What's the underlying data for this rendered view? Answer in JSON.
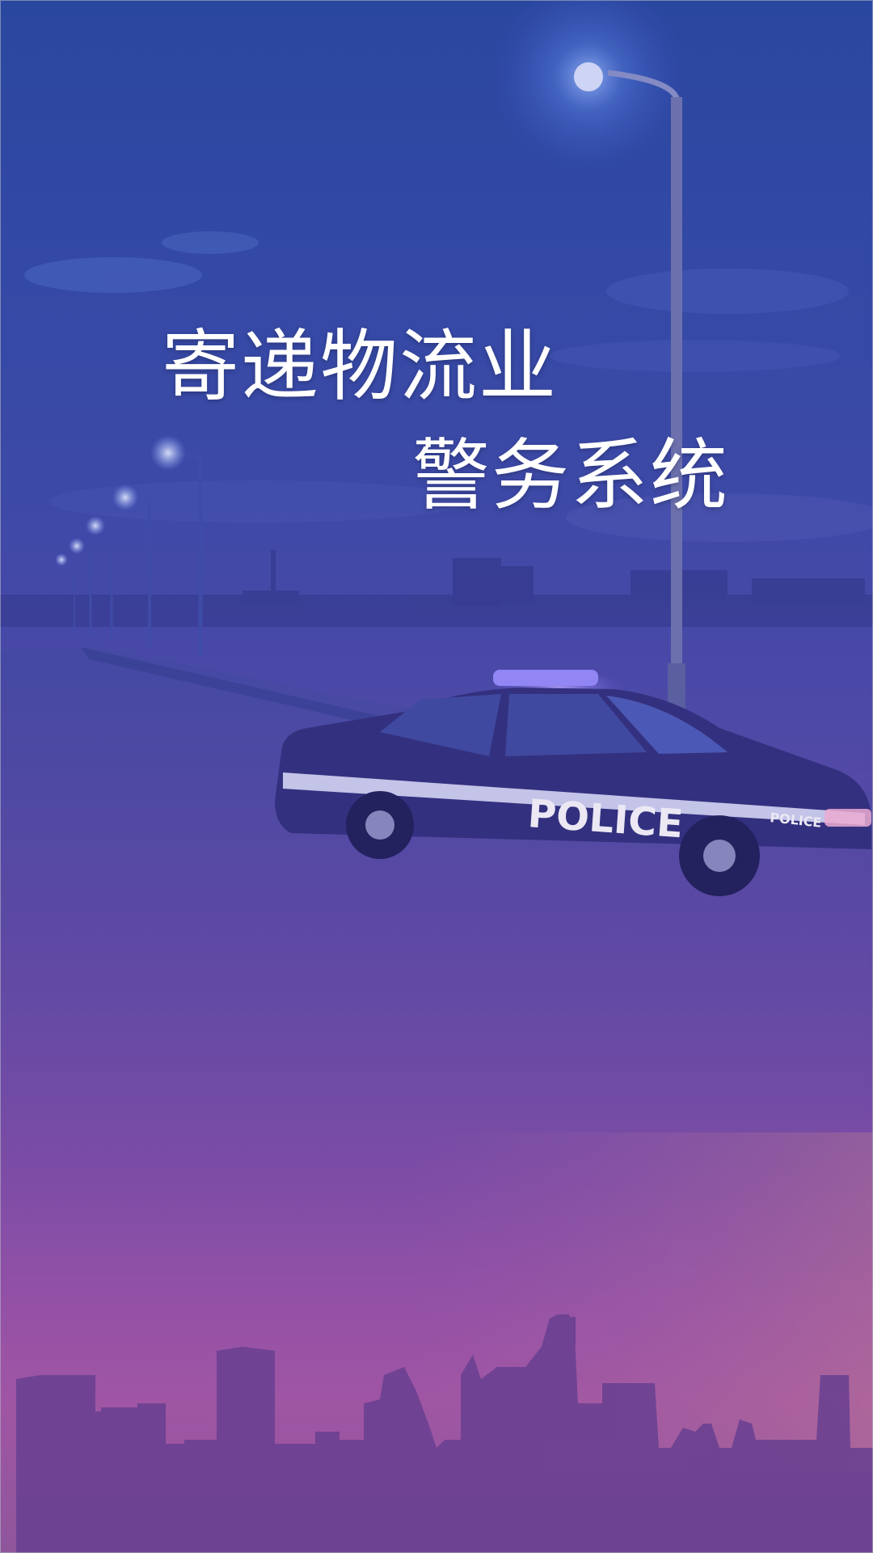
{
  "splash": {
    "title_line_1": "寄递物流业",
    "title_line_2": "警务系统",
    "car_label": "POLICE",
    "car_label_small": "POLICE"
  },
  "colors": {
    "top": "#24489f",
    "middle": "#5a4aa6",
    "bottom": "#b45aa3",
    "title_text": "#ffffff",
    "skyline": "#6a3f8e"
  },
  "icons": {
    "street_lamp": "street-lamp-icon",
    "police_car": "police-car-icon",
    "city_skyline": "city-skyline-icon"
  }
}
